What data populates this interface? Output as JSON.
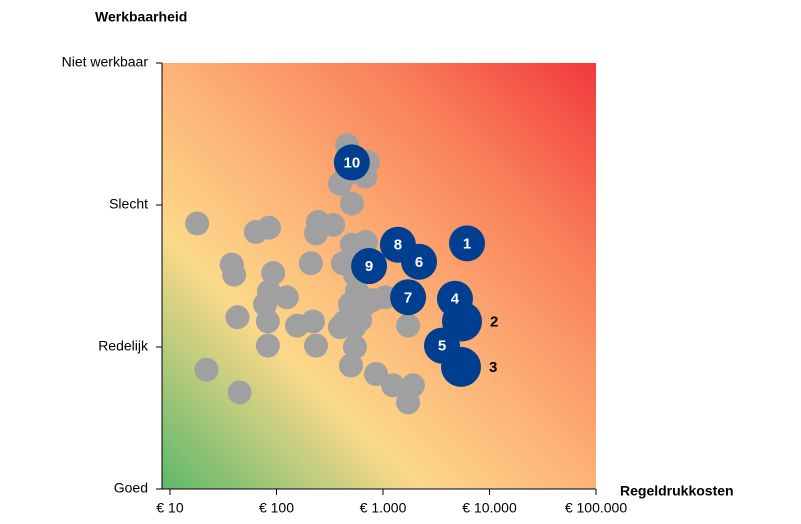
{
  "chart_data": {
    "type": "scatter",
    "y_label": "Werkbaarheid",
    "x_label": "Regeldrukkosten",
    "log_x": true,
    "xlim": [
      10,
      100000
    ],
    "xticks": [
      {
        "value": 10,
        "label": "€ 10"
      },
      {
        "value": 100,
        "label": "€ 100"
      },
      {
        "value": 1000,
        "label": "€ 1.000"
      },
      {
        "value": 10000,
        "label": "€ 10.000"
      },
      {
        "value": 100000,
        "label": "€ 100.000"
      }
    ],
    "ylim": [
      0,
      3
    ],
    "yticks": [
      {
        "value": 0,
        "label": "Goed"
      },
      {
        "value": 1,
        "label": "Redelijk"
      },
      {
        "value": 2,
        "label": "Slecht"
      },
      {
        "value": 3,
        "label": "Niet werkbaar"
      }
    ],
    "series": [
      {
        "color": "#a0a0a0",
        "x": [
          18,
          22,
          38,
          40,
          43,
          45,
          64,
          85,
          93,
          85,
          78,
          83,
          83,
          125,
          156,
          210,
          220,
          235,
          245,
          235,
          340,
          395,
          395,
          460,
          510,
          450,
          680,
          720,
          510,
          690,
          420,
          545,
          570,
          490,
          680,
          790,
          1050,
          535,
          440,
          545,
          500,
          860,
          1240,
          1910,
          1720,
          1720,
          610
        ],
        "y": [
          1.87,
          0.84,
          1.58,
          1.51,
          1.21,
          0.68,
          1.81,
          1.84,
          1.52,
          1.39,
          1.3,
          1.18,
          1.01,
          1.35,
          1.15,
          1.59,
          1.18,
          1.01,
          1.88,
          1.8,
          1.86,
          1.14,
          2.15,
          2.42,
          2.01,
          2.21,
          2.2,
          2.3,
          1.72,
          1.74,
          1.59,
          1.51,
          1.39,
          1.3,
          1.3,
          1.33,
          1.35,
          1.14,
          1.18,
          1.0,
          0.87,
          0.81,
          0.73,
          0.73,
          0.61,
          1.15,
          1.19
        ]
      },
      {
        "color": "#003f8f",
        "x": [
          6150,
          5520,
          5400,
          4740,
          3580,
          2180,
          1720,
          1380,
          740,
          510
        ],
        "y": [
          1.73,
          1.18,
          0.86,
          1.34,
          1.01,
          1.6,
          1.35,
          1.72,
          1.57,
          2.3
        ],
        "labels": [
          "1",
          "2",
          "3",
          "4",
          "5",
          "6",
          "7",
          "8",
          "9",
          "10"
        ]
      }
    ]
  }
}
